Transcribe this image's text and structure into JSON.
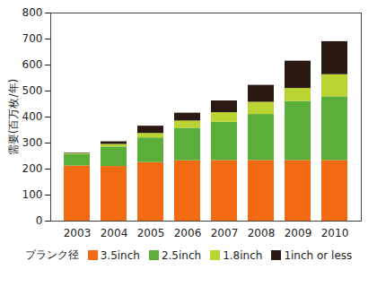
{
  "chart_data": {
    "type": "bar",
    "stacked": true,
    "ylabel": "需要(百万枚/年)",
    "legend_title": "ブランク径",
    "legend": "bottom",
    "grid": false,
    "categories": [
      "2003",
      "2004",
      "2005",
      "2006",
      "2007",
      "2008",
      "2009",
      "2010"
    ],
    "ylim": [
      0,
      800
    ],
    "yticks": [
      0,
      100,
      200,
      300,
      400,
      500,
      600,
      700,
      800
    ],
    "series": [
      {
        "name": "3.5inch",
        "color": "#f26a12",
        "values": [
          212,
          210,
          225,
          232,
          233,
          233,
          233,
          233
        ]
      },
      {
        "name": "2.5inch",
        "color": "#5cae3a",
        "values": [
          45,
          75,
          95,
          125,
          147,
          177,
          227,
          245
        ]
      },
      {
        "name": "1.8inch",
        "color": "#bcd431",
        "values": [
          3,
          10,
          17,
          28,
          37,
          47,
          50,
          85
        ]
      },
      {
        "name": "1inch or less",
        "color": "#2b1a13",
        "values": [
          2,
          10,
          28,
          30,
          45,
          65,
          105,
          127
        ]
      }
    ]
  }
}
